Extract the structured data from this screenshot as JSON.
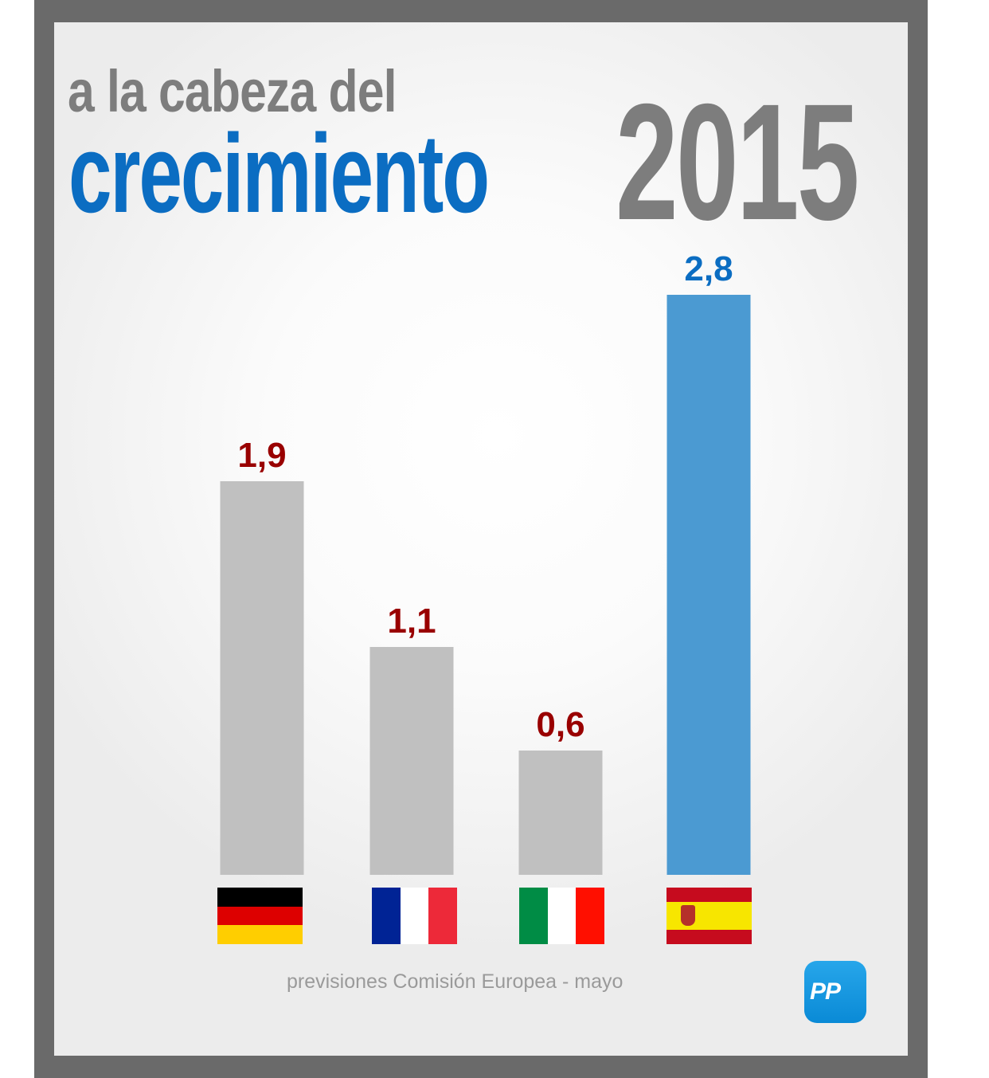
{
  "title": {
    "line1": "a la cabeza del",
    "line2": "crecimiento",
    "year": "2015"
  },
  "footnote": "previsiones Comisión Europea - mayo",
  "logo_text": "PP",
  "colors": {
    "gray_bar": "#c0c0c0",
    "spain_bar": "#4b9ad2",
    "label_red": "#990000",
    "label_blue": "#0b6dc2"
  },
  "chart_data": {
    "type": "bar",
    "categories": [
      "Alemania",
      "Francia",
      "Italia",
      "España"
    ],
    "values": [
      1.9,
      1.1,
      0.6,
      2.8
    ],
    "value_labels": [
      "1,9",
      "1,1",
      "0,6",
      "2,8"
    ],
    "highlight_index": 3,
    "title": "",
    "xlabel": "",
    "ylabel": "",
    "ylim": [
      0,
      2.8
    ],
    "grid": false
  },
  "flags": [
    "germany-flag-icon",
    "france-flag-icon",
    "italy-flag-icon",
    "spain-flag-icon"
  ]
}
